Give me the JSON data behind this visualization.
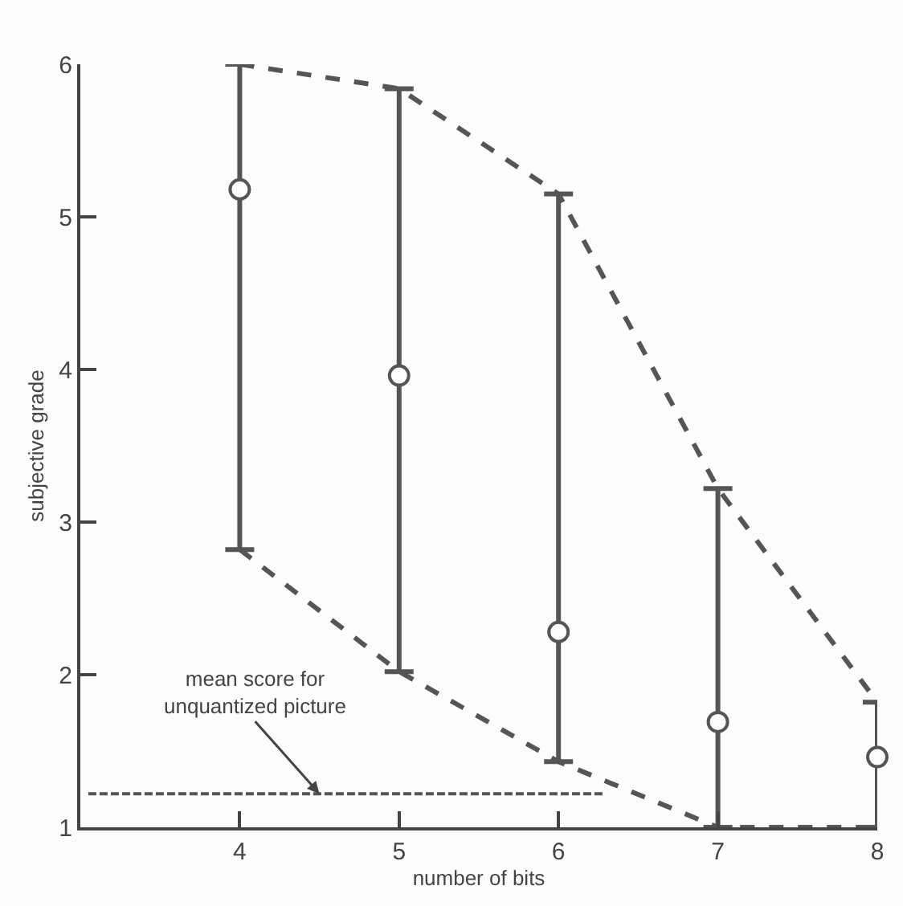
{
  "chart_data": {
    "type": "scatter",
    "xlabel": "number of bits",
    "ylabel": "subjective grade",
    "x": [
      4,
      5,
      6,
      7,
      8
    ],
    "xlim": [
      3,
      8
    ],
    "xticks": [
      4,
      5,
      6,
      7,
      8
    ],
    "ylim": [
      1,
      6
    ],
    "yticks": [
      1,
      2,
      3,
      4,
      5,
      6
    ],
    "series": [
      {
        "color": "#555555",
        "marker": "circle",
        "values": [
          5.18,
          3.96,
          2.28,
          1.69,
          1.46
        ],
        "errors": [
          [
            2.82,
            6.0
          ],
          [
            2.02,
            5.84
          ],
          [
            1.43,
            5.15
          ],
          [
            1.0,
            3.22
          ],
          [
            1.0,
            1.82
          ]
        ]
      },
      {
        "type": "line",
        "color": "#555555",
        "marker": "none",
        "line_style": "dashed",
        "values": [
          6.0,
          5.84,
          5.15,
          3.22,
          1.82
        ]
      },
      {
        "type": "line",
        "color": "#555555",
        "marker": "none",
        "line_style": "dashed",
        "values": [
          2.82,
          2.02,
          1.43,
          1.0,
          1.0
        ]
      },
      {
        "type": "line",
        "color": "#555555",
        "marker": "none",
        "line_style": "dashed",
        "x": [
          3.05,
          6.28
        ],
        "values": [
          1.22,
          1.22
        ]
      }
    ],
    "annotations": [
      {
        "text": "mean score for\nunquantized picture",
        "x": 4.5,
        "y": 1.22
      }
    ]
  }
}
